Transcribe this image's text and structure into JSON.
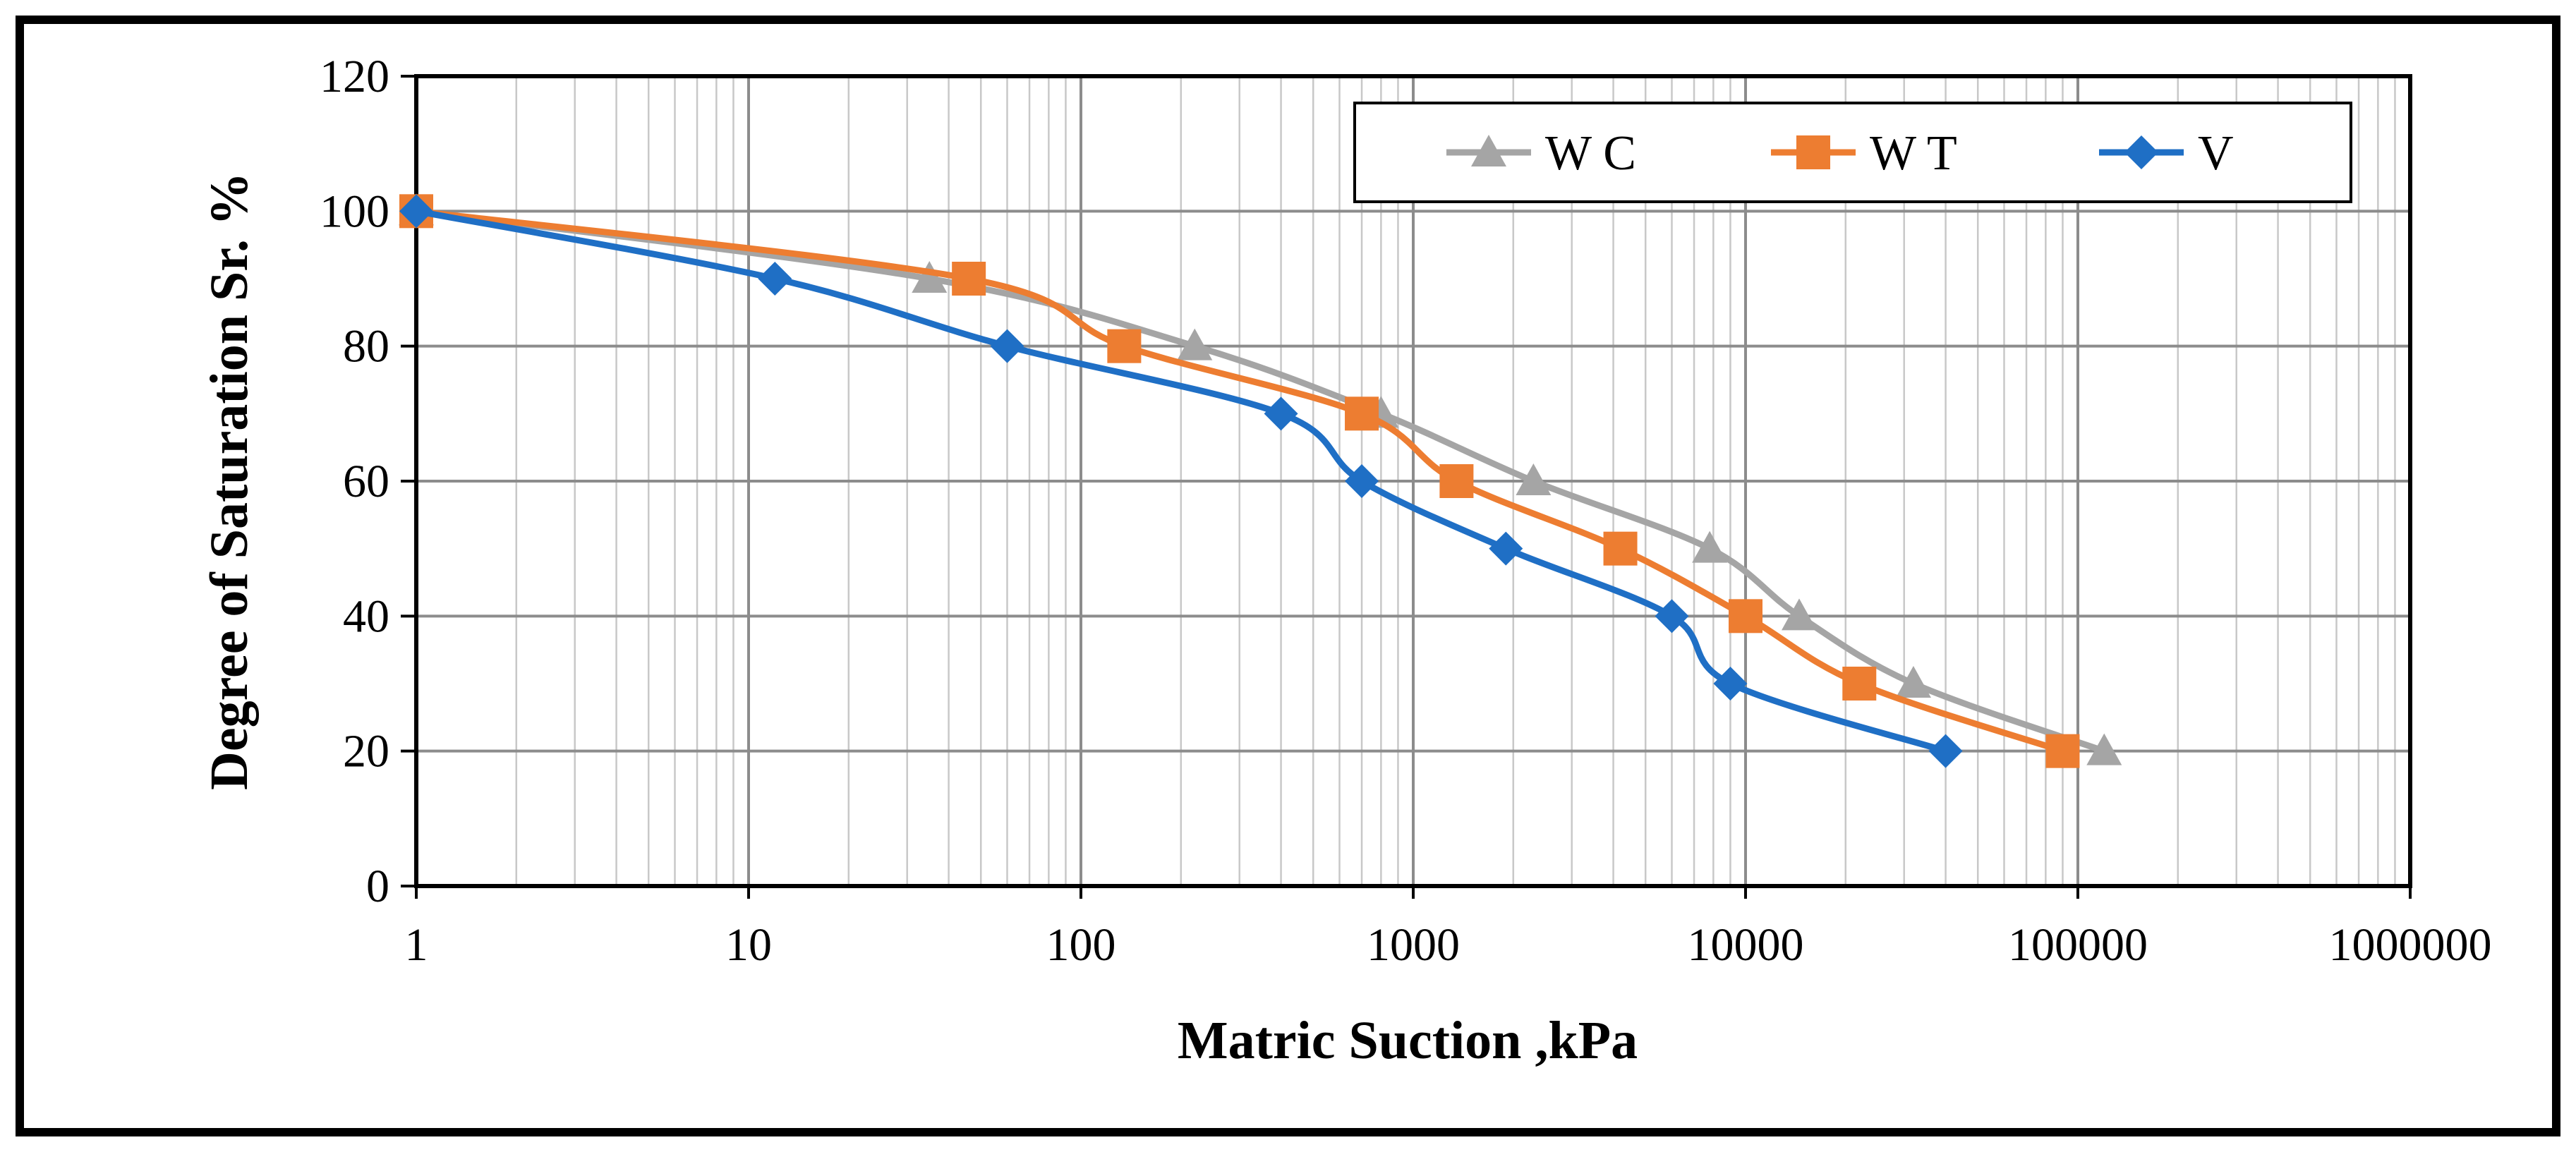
{
  "chart_data": {
    "type": "line",
    "x_scale": "log",
    "xlabel": "Matric Suction ,kPa",
    "ylabel": "Degree of Saturation Sr. %",
    "xlim": [
      1,
      1000000
    ],
    "ylim": [
      0,
      120
    ],
    "x_ticks": [
      "1",
      "10",
      "100",
      "1000",
      "10000",
      "100000",
      "1000000"
    ],
    "y_ticks": [
      "0",
      "20",
      "40",
      "60",
      "80",
      "100",
      "120"
    ],
    "grid": true,
    "legend_position": "top-right",
    "series": [
      {
        "name": "W C",
        "marker": "triangle",
        "color": "#a5a5a5",
        "x": [
          1,
          35,
          220,
          800,
          2300,
          7800,
          14500,
          32000,
          120000
        ],
        "y": [
          100,
          90,
          80,
          70,
          60,
          50,
          40,
          30,
          20
        ]
      },
      {
        "name": "W T",
        "marker": "square",
        "color": "#ed7d31",
        "x": [
          1,
          46,
          135,
          700,
          1350,
          4200,
          10000,
          22000,
          90000
        ],
        "y": [
          100,
          90,
          80,
          70,
          60,
          50,
          40,
          30,
          20
        ]
      },
      {
        "name": "V",
        "marker": "diamond",
        "color": "#1f6fc5",
        "x": [
          1,
          12,
          60,
          400,
          700,
          1900,
          6000,
          9000,
          40000
        ],
        "y": [
          100,
          90,
          80,
          70,
          60,
          50,
          40,
          30,
          20
        ]
      }
    ]
  }
}
